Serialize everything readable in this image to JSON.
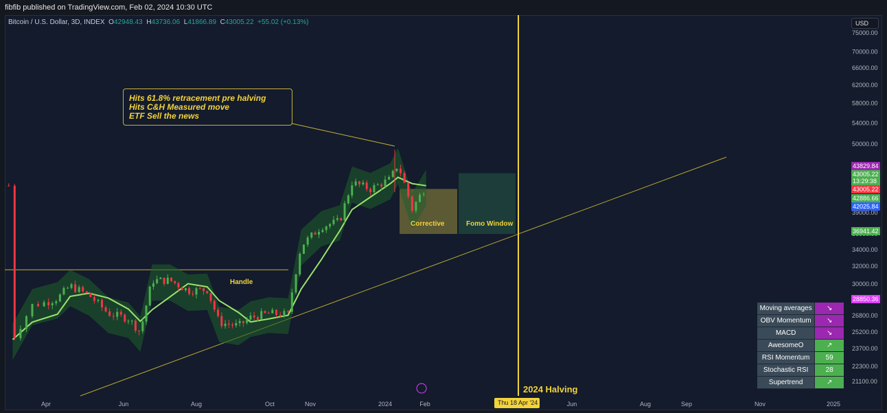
{
  "publisher_line": "fibfib published on TradingView.com, Feb 02, 2024 10:30 UTC",
  "symbol": {
    "name": "Bitcoin / U.S. Dollar, 3D, INDEX",
    "open_label": "O",
    "open": "42948.43",
    "high_label": "H",
    "high": "43736.06",
    "low_label": "L",
    "low": "41866.89",
    "close_label": "C",
    "close": "43005.22",
    "change": "+55.02 (+0.13%)"
  },
  "currency_button": "USD",
  "annotation_lines": [
    "Hits 61.8% retracement pre halving",
    "Hits C&H Measured move",
    "ETF Sell the news"
  ],
  "labels": {
    "handle": "Handle",
    "corrective": "Corrective",
    "fomo": "Fomo Window",
    "halving": "2024 Halving",
    "halving_date": "Thu 18 Apr '24"
  },
  "price_tags": [
    {
      "text": "43829.84",
      "color": "#9c27b0"
    },
    {
      "text": "43005.22",
      "color": "#4caf50"
    },
    {
      "text": "13:29:38",
      "color": "#4caf50"
    },
    {
      "text": "43005.22",
      "color": "#f23645"
    },
    {
      "text": "42886.66",
      "color": "#4caf50"
    },
    {
      "text": "42025.84",
      "color": "#2962ff"
    },
    {
      "text": "36941.42",
      "color": "#4caf50"
    },
    {
      "text": "28850.36",
      "color": "#e040fb"
    }
  ],
  "indicators": [
    {
      "name": "Moving averages",
      "value": "↘",
      "color": "#9c27b0"
    },
    {
      "name": "OBV Momentum",
      "value": "↘",
      "color": "#9c27b0"
    },
    {
      "name": "MACD",
      "value": "↘",
      "color": "#9c27b0"
    },
    {
      "name": "AwesomeO",
      "value": "↗",
      "color": "#4caf50"
    },
    {
      "name": "RSI Momentum",
      "value": "59",
      "color": "#4caf50"
    },
    {
      "name": "Stochastic RSI",
      "value": "28",
      "color": "#4caf50"
    },
    {
      "name": "Supertrend",
      "value": "↗",
      "color": "#4caf50"
    }
  ],
  "chart_data": {
    "type": "candlestick",
    "title": "Bitcoin / U.S. Dollar, 3D, INDEX",
    "y_ticks": [
      75000,
      70000,
      66000,
      62000,
      58000,
      54000,
      50000,
      39000,
      36000,
      34000,
      32000,
      30000,
      26800,
      25200,
      23700,
      22300,
      21100
    ],
    "x_ticks": [
      "Apr",
      "Jun",
      "Aug",
      "Oct",
      "Nov",
      "2024",
      "Feb",
      "Jun",
      "Aug",
      "Sep",
      "Nov",
      "2025"
    ],
    "close_path": [
      [
        "2023-03-15",
        24500
      ],
      [
        "2023-03-25",
        27800
      ],
      [
        "2023-04-10",
        28500
      ],
      [
        "2023-04-20",
        29800
      ],
      [
        "2023-05-05",
        28800
      ],
      [
        "2023-05-20",
        27000
      ],
      [
        "2023-06-05",
        26500
      ],
      [
        "2023-06-15",
        25200
      ],
      [
        "2023-06-25",
        30400
      ],
      [
        "2023-07-10",
        30400
      ],
      [
        "2023-07-25",
        29300
      ],
      [
        "2023-08-10",
        29400
      ],
      [
        "2023-08-20",
        26100
      ],
      [
        "2023-09-05",
        25800
      ],
      [
        "2023-09-15",
        26600
      ],
      [
        "2023-09-30",
        27000
      ],
      [
        "2023-10-15",
        26900
      ],
      [
        "2023-10-25",
        34500
      ],
      [
        "2023-11-10",
        37000
      ],
      [
        "2023-11-25",
        37800
      ],
      [
        "2023-12-05",
        43500
      ],
      [
        "2023-12-20",
        42500
      ],
      [
        "2024-01-05",
        44000
      ],
      [
        "2024-01-11",
        46500
      ],
      [
        "2024-01-22",
        39500
      ],
      [
        "2024-02-02",
        43005
      ]
    ],
    "halving_date": "2024-04-18",
    "annotated_high": 49000,
    "indicator_table": {
      "Moving averages": "↘",
      "OBV Momentum": "↘",
      "MACD": "↘",
      "AwesomeO": "↗",
      "RSI Momentum": "59",
      "Stochastic RSI": "28",
      "Supertrend": "↗"
    }
  }
}
